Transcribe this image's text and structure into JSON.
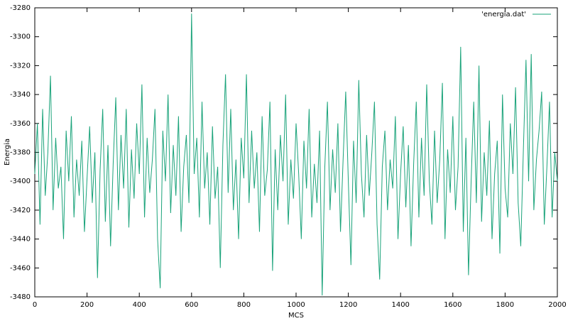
{
  "chart_data": {
    "type": "line",
    "xlabel": "MCS",
    "ylabel": "Energia",
    "xlim": [
      0,
      2000
    ],
    "xticks": [
      0,
      200,
      400,
      600,
      800,
      1000,
      1200,
      1400,
      1600,
      1800,
      2000
    ],
    "ylim": [
      -3480,
      -3280
    ],
    "yticks": [
      -3480,
      -3460,
      -3440,
      -3420,
      -3400,
      -3380,
      -3360,
      -3340,
      -3320,
      -3300,
      -3280
    ],
    "legend": "top-right",
    "x": [
      0,
      10,
      20,
      30,
      40,
      50,
      60,
      70,
      80,
      90,
      100,
      110,
      120,
      130,
      140,
      150,
      160,
      170,
      180,
      190,
      200,
      210,
      220,
      230,
      240,
      250,
      260,
      270,
      280,
      290,
      300,
      310,
      320,
      330,
      340,
      350,
      360,
      370,
      380,
      390,
      400,
      410,
      420,
      430,
      440,
      450,
      460,
      470,
      480,
      490,
      500,
      510,
      520,
      530,
      540,
      550,
      560,
      570,
      580,
      590,
      600,
      610,
      620,
      630,
      640,
      650,
      660,
      670,
      680,
      690,
      700,
      710,
      720,
      730,
      740,
      750,
      760,
      770,
      780,
      790,
      800,
      810,
      820,
      830,
      840,
      850,
      860,
      870,
      880,
      890,
      900,
      910,
      920,
      930,
      940,
      950,
      960,
      970,
      980,
      990,
      1000,
      1010,
      1020,
      1030,
      1040,
      1050,
      1060,
      1070,
      1080,
      1090,
      1100,
      1110,
      1120,
      1130,
      1140,
      1150,
      1160,
      1170,
      1180,
      1190,
      1200,
      1210,
      1220,
      1230,
      1240,
      1250,
      1260,
      1270,
      1280,
      1290,
      1300,
      1310,
      1320,
      1330,
      1340,
      1350,
      1360,
      1370,
      1380,
      1390,
      1400,
      1410,
      1420,
      1430,
      1440,
      1450,
      1460,
      1470,
      1480,
      1490,
      1500,
      1510,
      1520,
      1530,
      1540,
      1550,
      1560,
      1570,
      1580,
      1590,
      1600,
      1610,
      1620,
      1630,
      1640,
      1650,
      1660,
      1670,
      1680,
      1690,
      1700,
      1710,
      1720,
      1730,
      1740,
      1750,
      1760,
      1770,
      1780,
      1790,
      1800,
      1810,
      1820,
      1830,
      1840,
      1850,
      1860,
      1870,
      1880,
      1890,
      1900,
      1910,
      1920,
      1930,
      1940,
      1950,
      1960,
      1970,
      1980,
      1990,
      2000
    ],
    "series": [
      {
        "name": "'energia.dat'",
        "color": "#1aa37a",
        "values": [
          -3395,
          -3360,
          -3430,
          -3350,
          -3410,
          -3380,
          -3327,
          -3420,
          -3370,
          -3405,
          -3390,
          -3440,
          -3365,
          -3400,
          -3355,
          -3425,
          -3385,
          -3410,
          -3372,
          -3435,
          -3398,
          -3362,
          -3415,
          -3380,
          -3467,
          -3392,
          -3350,
          -3428,
          -3375,
          -3445,
          -3388,
          -3342,
          -3420,
          -3368,
          -3405,
          -3350,
          -3432,
          -3378,
          -3412,
          -3360,
          -3395,
          -3333,
          -3425,
          -3370,
          -3408,
          -3385,
          -3350,
          -3440,
          -3474,
          -3365,
          -3400,
          -3340,
          -3422,
          -3375,
          -3410,
          -3355,
          -3435,
          -3390,
          -3368,
          -3415,
          -3284,
          -3395,
          -3370,
          -3425,
          -3345,
          -3405,
          -3380,
          -3430,
          -3362,
          -3412,
          -3390,
          -3460,
          -3375,
          -3326,
          -3408,
          -3350,
          -3420,
          -3385,
          -3440,
          -3370,
          -3398,
          -3326,
          -3415,
          -3365,
          -3405,
          -3380,
          -3435,
          -3355,
          -3410,
          -3392,
          -3345,
          -3462,
          -3378,
          -3420,
          -3368,
          -3400,
          -3340,
          -3430,
          -3385,
          -3412,
          -3360,
          -3395,
          -3440,
          -3372,
          -3405,
          -3350,
          -3425,
          -3388,
          -3415,
          -3365,
          -3479,
          -3390,
          -3345,
          -3420,
          -3378,
          -3408,
          -3360,
          -3435,
          -3385,
          -3338,
          -3400,
          -3458,
          -3372,
          -3415,
          -3330,
          -3395,
          -3425,
          -3368,
          -3410,
          -3380,
          -3345,
          -3430,
          -3468,
          -3390,
          -3365,
          -3420,
          -3385,
          -3405,
          -3355,
          -3440,
          -3395,
          -3362,
          -3418,
          -3375,
          -3445,
          -3388,
          -3345,
          -3425,
          -3370,
          -3410,
          -3333,
          -3400,
          -3430,
          -3365,
          -3415,
          -3385,
          -3332,
          -3440,
          -3378,
          -3408,
          -3355,
          -3420,
          -3390,
          -3307,
          -3435,
          -3370,
          -3465,
          -3400,
          -3345,
          -3415,
          -3320,
          -3428,
          -3380,
          -3410,
          -3358,
          -3440,
          -3395,
          -3372,
          -3450,
          -3340,
          -3405,
          -3425,
          -3360,
          -3395,
          -3335,
          -3415,
          -3445,
          -3378,
          -3316,
          -3400,
          -3312,
          -3420,
          -3385,
          -3365,
          -3338,
          -3430,
          -3390,
          -3345,
          -3425,
          -3380,
          -3400
        ]
      }
    ]
  }
}
